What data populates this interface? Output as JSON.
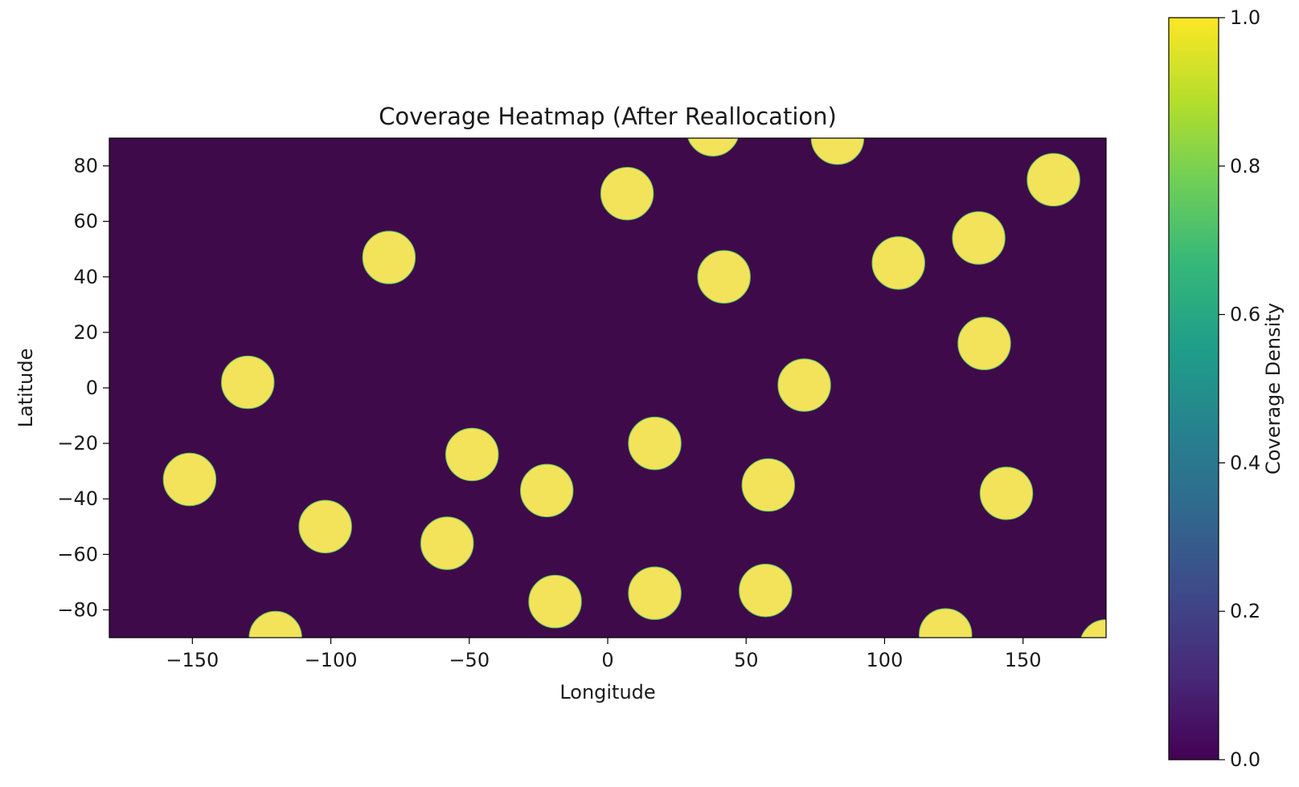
{
  "chart_data": {
    "type": "heatmap",
    "title": "Coverage Heatmap (After Reallocation)",
    "xlabel": "Longitude",
    "ylabel": "Latitude",
    "xlim": [
      -180,
      180
    ],
    "ylim": [
      -90,
      90
    ],
    "x_ticks": [
      -150,
      -100,
      -50,
      0,
      50,
      100,
      150
    ],
    "x_tick_labels": [
      "−150",
      "−100",
      "−50",
      "0",
      "50",
      "100",
      "150"
    ],
    "y_ticks": [
      80,
      60,
      40,
      20,
      0,
      -20,
      -40,
      -60,
      -80
    ],
    "y_tick_labels": [
      "80",
      "60",
      "40",
      "20",
      "0",
      "−20",
      "−40",
      "−60",
      "−80"
    ],
    "background_value": 0.0,
    "coverage_value": 1.0,
    "coverage_radius_deg": 9.5,
    "coverage_centers": [
      {
        "lon": 38,
        "lat": 93
      },
      {
        "lon": 83,
        "lat": 90
      },
      {
        "lon": 7,
        "lat": 70
      },
      {
        "lon": 161,
        "lat": 75
      },
      {
        "lon": -79,
        "lat": 47
      },
      {
        "lon": 42,
        "lat": 40
      },
      {
        "lon": 105,
        "lat": 45
      },
      {
        "lon": 134,
        "lat": 54
      },
      {
        "lon": 136,
        "lat": 16
      },
      {
        "lon": -130,
        "lat": 2
      },
      {
        "lon": 71,
        "lat": 1
      },
      {
        "lon": -49,
        "lat": -24
      },
      {
        "lon": 17,
        "lat": -20
      },
      {
        "lon": -151,
        "lat": -33
      },
      {
        "lon": -22,
        "lat": -37
      },
      {
        "lon": 58,
        "lat": -35
      },
      {
        "lon": 144,
        "lat": -38
      },
      {
        "lon": -102,
        "lat": -50
      },
      {
        "lon": -58,
        "lat": -56
      },
      {
        "lon": -19,
        "lat": -77
      },
      {
        "lon": 17,
        "lat": -74
      },
      {
        "lon": 57,
        "lat": -73
      },
      {
        "lon": -120,
        "lat": -90
      },
      {
        "lon": 122,
        "lat": -89
      },
      {
        "lon": 180,
        "lat": -93
      }
    ],
    "colorbar": {
      "label": "Coverage Density",
      "range": [
        0,
        1
      ],
      "ticks": [
        0,
        0.2,
        0.4,
        0.6,
        0.8,
        1.0
      ],
      "tick_labels": [
        "0.0",
        "0.2",
        "0.4",
        "0.6",
        "0.8",
        "1.0"
      ],
      "colormap": "viridis"
    },
    "colors": {
      "background": "#440154",
      "background_fill": "#3f0a4a",
      "coverage": "#f3e35a",
      "viridis_stops": [
        "#440154",
        "#482878",
        "#3e4989",
        "#31688e",
        "#26828e",
        "#1f9e89",
        "#35b779",
        "#6ece58",
        "#b5de2b",
        "#fde725"
      ]
    }
  }
}
